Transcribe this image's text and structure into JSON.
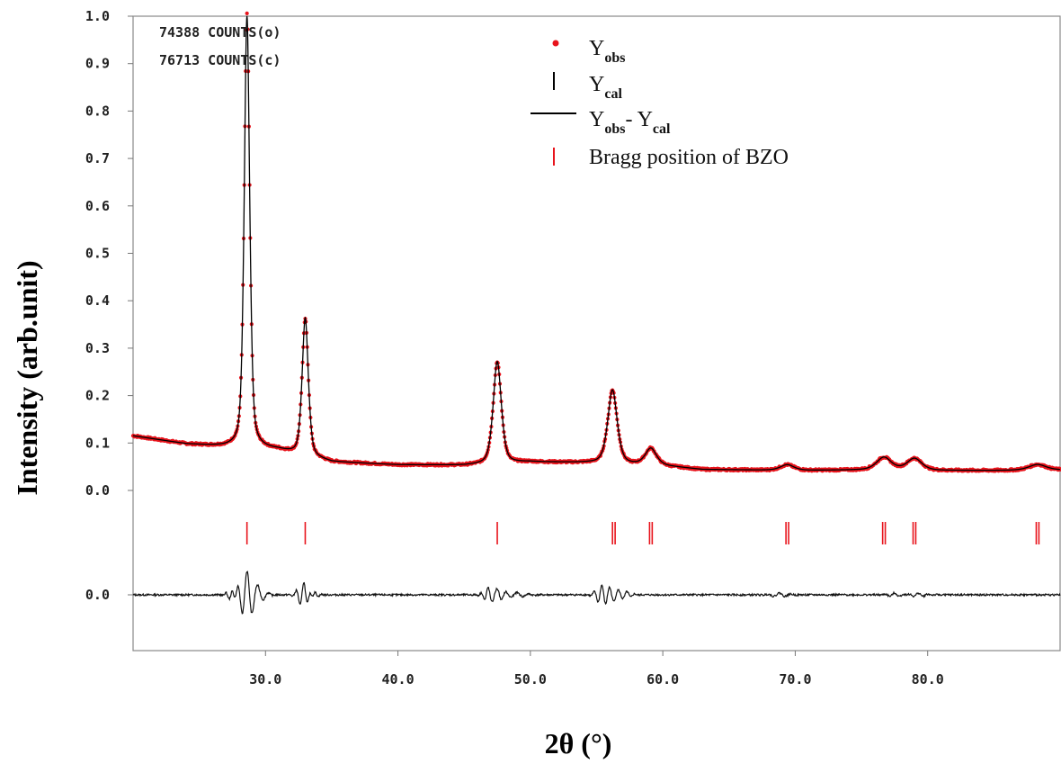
{
  "chart_data": {
    "type": "line",
    "xlabel": "2θ (°)",
    "ylabel": "Intensity (arb.unit)",
    "xlim": [
      20,
      90
    ],
    "ylim": [
      0,
      1.0
    ],
    "x_ticks": [
      30,
      40,
      50,
      60,
      70,
      80
    ],
    "x_tick_labels": [
      "30.0",
      "40.0",
      "50.0",
      "60.0",
      "70.0",
      "80.0"
    ],
    "y_ticks": [
      0,
      0.1,
      0.2,
      0.3,
      0.4,
      0.5,
      0.6,
      0.7,
      0.8,
      0.9,
      1.0
    ],
    "y_tick_labels": [
      "0.0",
      "0.1",
      "0.2",
      "0.3",
      "0.4",
      "0.5",
      "0.6",
      "0.7",
      "0.8",
      "0.9",
      "1.0"
    ],
    "diff_tick_label": "0.0",
    "annotations": [
      "74388 COUNTS(o)",
      "76713 COUNTS(c)"
    ],
    "legend": {
      "placement": "top-right",
      "entries": [
        {
          "main": "Y",
          "sub": "obs",
          "marker": "dot",
          "color": "#e8141c"
        },
        {
          "main": "Y",
          "sub": "cal",
          "marker": "vbar",
          "color": "#000000"
        },
        {
          "parts": [
            {
              "main": "Y",
              "sub": "obs"
            },
            {
              "main": "- Y",
              "sub": "cal"
            }
          ],
          "marker": "line",
          "color": "#000000"
        },
        {
          "text": "Bragg position of BZO",
          "marker": "tick",
          "color": "#e8141c"
        }
      ]
    },
    "series": [
      {
        "name": "Yobs",
        "color": "#e8141c",
        "marker": "dot"
      },
      {
        "name": "Ycal",
        "color": "#000000",
        "marker": "line"
      },
      {
        "name": "Yobs- Ycal",
        "color": "#000000",
        "marker": "line"
      }
    ],
    "profile": {
      "background": [
        [
          20,
          0.115
        ],
        [
          24,
          0.098
        ],
        [
          27,
          0.092
        ],
        [
          29,
          0.09
        ],
        [
          31,
          0.085
        ],
        [
          35,
          0.06
        ],
        [
          40,
          0.054
        ],
        [
          45,
          0.053
        ],
        [
          50,
          0.06
        ],
        [
          55,
          0.058
        ],
        [
          60,
          0.052
        ],
        [
          63,
          0.044
        ],
        [
          70,
          0.042
        ],
        [
          75,
          0.043
        ],
        [
          80,
          0.042
        ],
        [
          85,
          0.042
        ],
        [
          90,
          0.043
        ]
      ],
      "peaks": [
        {
          "x": 28.6,
          "h": 0.915,
          "w": 0.22
        },
        {
          "x": 33.0,
          "h": 0.29,
          "w": 0.25
        },
        {
          "x": 47.5,
          "h": 0.215,
          "w": 0.33
        },
        {
          "x": 56.2,
          "h": 0.155,
          "w": 0.38
        },
        {
          "x": 59.1,
          "h": 0.035,
          "w": 0.45
        },
        {
          "x": 69.4,
          "h": 0.012,
          "w": 0.55
        },
        {
          "x": 76.7,
          "h": 0.027,
          "w": 0.6
        },
        {
          "x": 79.0,
          "h": 0.025,
          "w": 0.6
        },
        {
          "x": 88.3,
          "h": 0.012,
          "w": 0.7
        }
      ],
      "ycal_peak_max": 1.0
    },
    "bragg_positions": [
      28.6,
      33.0,
      47.5,
      56.2,
      56.4,
      59.0,
      59.2,
      69.3,
      69.5,
      76.6,
      76.8,
      78.9,
      79.1,
      88.2,
      88.4
    ],
    "difference": {
      "noise_amplitude": 0.004,
      "wiggles": [
        {
          "x": 27.5,
          "a": 0.012,
          "w": 0.35
        },
        {
          "x": 28.6,
          "a": 0.05,
          "w": 0.5
        },
        {
          "x": 29.5,
          "a": 0.012,
          "w": 0.5
        },
        {
          "x": 32.9,
          "a": 0.028,
          "w": 0.4
        },
        {
          "x": 33.5,
          "a": -0.01,
          "w": 0.35
        },
        {
          "x": 46.8,
          "a": 0.012,
          "w": 0.35
        },
        {
          "x": 47.5,
          "a": 0.014,
          "w": 0.45
        },
        {
          "x": 49.0,
          "a": 0.005,
          "w": 0.6
        },
        {
          "x": 55.4,
          "a": 0.02,
          "w": 0.4
        },
        {
          "x": 56.3,
          "a": -0.012,
          "w": 0.45
        },
        {
          "x": 57.3,
          "a": 0.006,
          "w": 0.4
        },
        {
          "x": 68.8,
          "a": 0.004,
          "w": 0.6
        },
        {
          "x": 77.5,
          "a": 0.004,
          "w": 0.5
        },
        {
          "x": 79.3,
          "a": 0.004,
          "w": 0.5
        }
      ]
    }
  }
}
